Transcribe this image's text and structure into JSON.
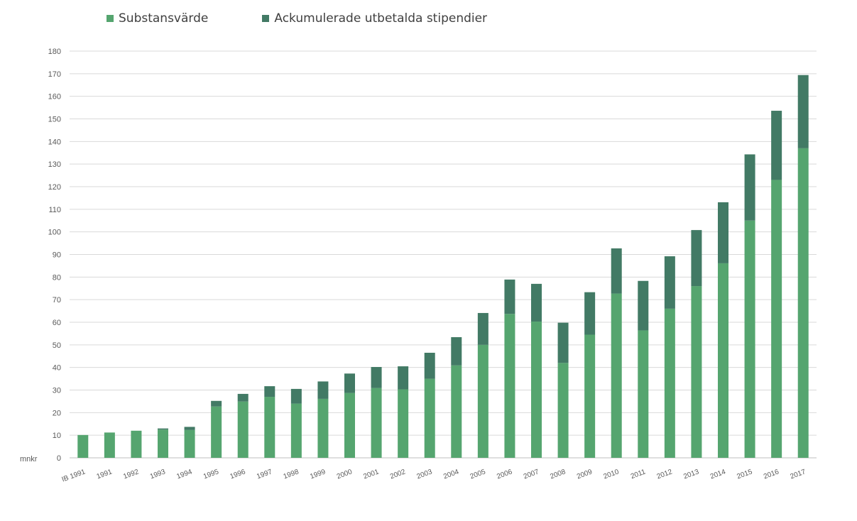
{
  "chart_data": {
    "type": "bar",
    "stacked": true,
    "categories": [
      "IB 1991",
      "1991",
      "1992",
      "1993",
      "1994",
      "1995",
      "1996",
      "1997",
      "1998",
      "1999",
      "2000",
      "2001",
      "2002",
      "2003",
      "2004",
      "2005",
      "2006",
      "2007",
      "2008",
      "2009",
      "2010",
      "2011",
      "2012",
      "2013",
      "2014",
      "2015",
      "2016",
      "2017"
    ],
    "series": [
      {
        "name": "Substansvärde",
        "color": "#55a56f",
        "values": [
          10.1,
          11.2,
          12.0,
          12.5,
          12.3,
          22.7,
          24.9,
          27.0,
          24.0,
          26.1,
          28.7,
          30.9,
          30.3,
          35.0,
          40.9,
          50.0,
          63.7,
          60.3,
          42.0,
          54.5,
          72.7,
          56.4,
          66.0,
          76.0,
          86.1,
          105.0,
          123.0,
          137.0
        ]
      },
      {
        "name": "Ackumulerade utbetalda stipendier",
        "color": "#427a65",
        "values": [
          0,
          0,
          0,
          0.5,
          1.4,
          2.5,
          3.4,
          4.7,
          6.5,
          7.7,
          8.6,
          9.3,
          10.2,
          11.5,
          12.5,
          14.1,
          15.2,
          16.7,
          17.8,
          18.8,
          20.0,
          21.9,
          23.2,
          24.8,
          27.0,
          29.3,
          30.6,
          32.4
        ]
      }
    ],
    "yticks": [
      "0",
      "10",
      "20",
      "30",
      "40",
      "50",
      "60",
      "70",
      "80",
      "90",
      "100",
      "110",
      "120",
      "130",
      "140",
      "150",
      "160",
      "170",
      "180"
    ],
    "ylim": [
      0,
      180
    ],
    "ylabel": "mnkr",
    "grid": true,
    "legend_position": "top-left"
  }
}
